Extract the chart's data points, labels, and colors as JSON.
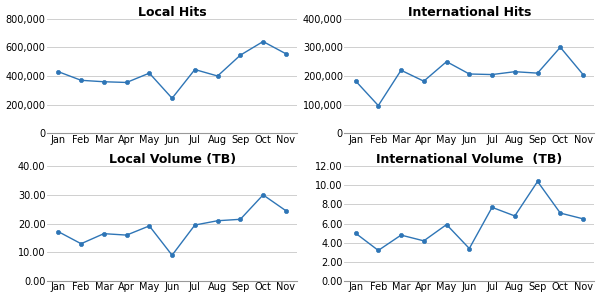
{
  "months": [
    "Jan",
    "Feb",
    "Mar",
    "Apr",
    "May",
    "Jun",
    "Jul",
    "Aug",
    "Sep",
    "Oct",
    "Nov"
  ],
  "local_hits": [
    430000,
    370000,
    360000,
    355000,
    420000,
    245000,
    445000,
    400000,
    545000,
    640000,
    555000
  ],
  "intl_hits": [
    183000,
    97000,
    220000,
    182000,
    250000,
    207000,
    205000,
    215000,
    210000,
    300000,
    205000
  ],
  "local_vol": [
    17.2,
    13.0,
    16.5,
    16.0,
    19.2,
    9.0,
    19.5,
    21.0,
    21.5,
    30.0,
    24.5
  ],
  "intl_vol": [
    5.0,
    3.2,
    4.8,
    4.2,
    5.9,
    3.4,
    7.7,
    6.8,
    10.4,
    7.1,
    6.5
  ],
  "line_color": "#2E75B6",
  "marker": "o",
  "marker_size": 3,
  "titles": [
    "Local Hits",
    "International Hits",
    "Local Volume (TB)",
    "International Volume  (TB)"
  ],
  "local_hits_ylim": [
    0,
    800000
  ],
  "intl_hits_ylim": [
    0,
    400000
  ],
  "local_vol_ylim": [
    0,
    40
  ],
  "intl_vol_ylim": [
    0,
    12
  ],
  "local_hits_yticks": [
    0,
    200000,
    400000,
    600000,
    800000
  ],
  "intl_hits_yticks": [
    0,
    100000,
    200000,
    300000,
    400000
  ],
  "local_vol_yticks": [
    0.0,
    10.0,
    20.0,
    30.0,
    40.0
  ],
  "intl_vol_yticks": [
    0.0,
    2.0,
    4.0,
    6.0,
    8.0,
    10.0,
    12.0
  ],
  "bg_color": "#FFFFFF",
  "grid_color": "#C8C8C8",
  "title_fontsize": 9,
  "tick_fontsize": 7
}
